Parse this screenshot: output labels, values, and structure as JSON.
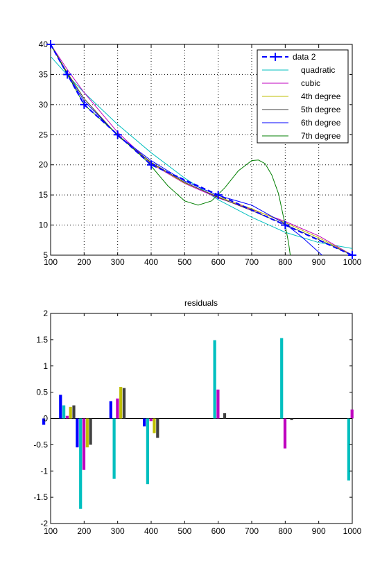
{
  "chart_data": [
    {
      "type": "line",
      "title": "",
      "xlabel": "",
      "ylabel": "",
      "xlim": [
        100,
        1000
      ],
      "ylim": [
        5,
        40
      ],
      "xticks": [
        100,
        200,
        300,
        400,
        500,
        600,
        700,
        800,
        900,
        1000
      ],
      "yticks": [
        5,
        10,
        15,
        20,
        25,
        30,
        35,
        40
      ],
      "grid": true,
      "legend_position": "top-right",
      "series": [
        {
          "name": "data 2",
          "color": "#0000ff",
          "style": "dashed-plus",
          "x": [
            100,
            150,
            200,
            300,
            400,
            600,
            800,
            1000
          ],
          "y": [
            40,
            35,
            30,
            25,
            20,
            15,
            10,
            5
          ]
        },
        {
          "name": "quadratic",
          "color": "#00bfbf",
          "x": [
            100,
            150,
            200,
            300,
            400,
            500,
            600,
            700,
            800,
            900,
            1000
          ],
          "y": [
            38.0,
            34.9,
            32.0,
            26.7,
            22.0,
            17.8,
            14.2,
            11.3,
            8.8,
            7.1,
            6.1
          ]
        },
        {
          "name": "cubic",
          "color": "#bf00bf",
          "x": [
            100,
            150,
            200,
            300,
            400,
            500,
            600,
            700,
            800,
            900,
            1000
          ],
          "y": [
            40.0,
            35.8,
            32.0,
            25.4,
            20.2,
            16.9,
            14.5,
            12.6,
            10.6,
            8.2,
            5.0
          ]
        },
        {
          "name": "4th degree",
          "color": "#bfbf00",
          "x": [
            100,
            150,
            200,
            300,
            400,
            500,
            600,
            700,
            800,
            900,
            1000
          ],
          "y": [
            40.0,
            35.3,
            31.0,
            24.9,
            20.3,
            17.0,
            14.7,
            12.7,
            10.4,
            7.9,
            5.0
          ]
        },
        {
          "name": "5th degree",
          "color": "#404040",
          "x": [
            100,
            150,
            200,
            300,
            400,
            500,
            600,
            700,
            800,
            900,
            1000
          ],
          "y": [
            40.0,
            35.2,
            31.0,
            24.8,
            20.4,
            17.1,
            14.6,
            12.4,
            10.1,
            7.6,
            5.0
          ]
        },
        {
          "name": "6th degree",
          "color": "#0000ff",
          "x": [
            100,
            150,
            200,
            300,
            400,
            500,
            600,
            700,
            800,
            850,
            900,
            950,
            1000
          ],
          "y": [
            40.0,
            35.0,
            30.6,
            24.9,
            20.7,
            17.3,
            14.9,
            13.3,
            10.2,
            8.0,
            5.5,
            3.0,
            5.0
          ]
        },
        {
          "name": "7th degree",
          "color": "#007f00",
          "x": [
            100,
            150,
            200,
            300,
            380,
            400,
            450,
            500,
            540,
            580,
            620,
            660,
            700,
            720,
            740,
            760,
            780,
            800,
            810,
            820
          ],
          "y": [
            40.0,
            35.0,
            30.0,
            25.0,
            21.0,
            19.8,
            16.5,
            14.0,
            13.3,
            14.0,
            16.2,
            19.0,
            20.7,
            20.8,
            20.2,
            18.3,
            15.2,
            10.0,
            7.0,
            3.0
          ]
        }
      ]
    },
    {
      "type": "bar",
      "title": "residuals",
      "xlabel": "",
      "ylabel": "",
      "xlim": [
        100,
        1000
      ],
      "ylim": [
        -2,
        2
      ],
      "xticks": [
        100,
        200,
        300,
        400,
        500,
        600,
        700,
        800,
        900,
        1000
      ],
      "yticks": [
        -2,
        -1.5,
        -1,
        -0.5,
        0,
        0.5,
        1,
        1.5,
        2
      ],
      "grid": false,
      "categories": [
        100,
        150,
        200,
        300,
        400,
        600,
        800,
        1000
      ],
      "series": [
        {
          "name": "",
          "color": "#0000ff",
          "values": [
            -0.12,
            0.45,
            -0.55,
            0.33,
            -0.15,
            0,
            0,
            0
          ]
        },
        {
          "name": "",
          "color": "#00bfbf",
          "values": [
            0.0,
            0.25,
            -1.72,
            -1.15,
            -1.25,
            1.49,
            1.53,
            -1.18
          ]
        },
        {
          "name": "",
          "color": "#bf00bf",
          "values": [
            0.0,
            0.05,
            -0.98,
            0.38,
            -0.05,
            0.55,
            -0.57,
            0.17
          ]
        },
        {
          "name": "",
          "color": "#bfbf00",
          "values": [
            0.0,
            0.22,
            -0.55,
            0.6,
            -0.28,
            0.0,
            0.0,
            0.0
          ]
        },
        {
          "name": "",
          "color": "#404040",
          "values": [
            0.0,
            0.25,
            -0.5,
            0.58,
            -0.37,
            0.1,
            -0.03,
            0.0
          ]
        }
      ]
    }
  ]
}
